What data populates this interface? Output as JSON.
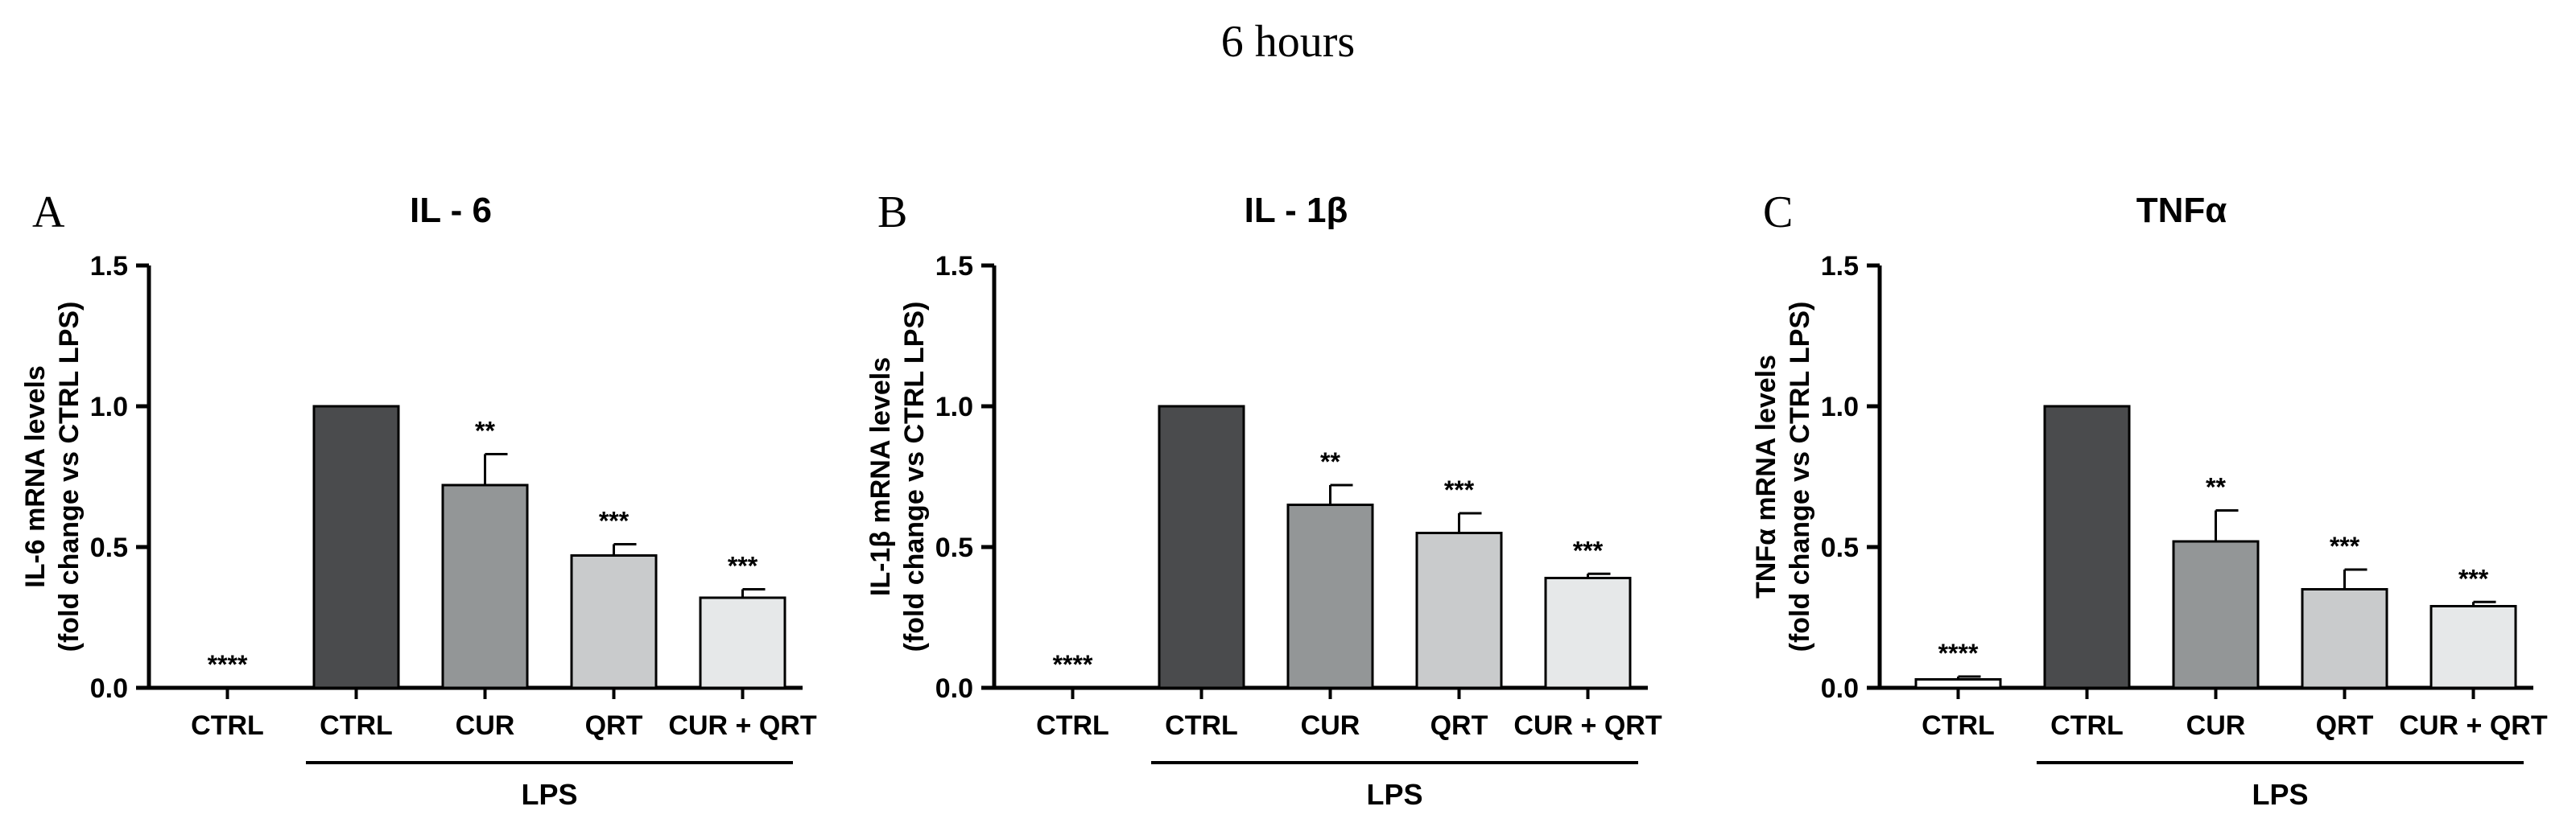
{
  "figure_title": "6 hours",
  "colors": {
    "axis": "#000000",
    "bar_fills": [
      "#ffffff",
      "#4a4b4d",
      "#939697",
      "#c9cbcc",
      "#e6e8e9"
    ],
    "bar_stroke": "#000000"
  },
  "chart_data": [
    {
      "panel": "A",
      "type": "bar",
      "title": "IL - 6",
      "ylabel": [
        "IL-6 mRNA levels",
        "(fold change vs CTRL LPS)"
      ],
      "ylim": [
        0,
        1.5
      ],
      "yticks": [
        "0.0",
        "0.5",
        "1.0",
        "1.5"
      ],
      "categories": [
        "CTRL",
        "CTRL",
        "CUR",
        "QRT",
        "CUR + QRT"
      ],
      "values": [
        0.0,
        1.0,
        0.72,
        0.47,
        0.32
      ],
      "errors": [
        0.0,
        0.0,
        0.11,
        0.04,
        0.03
      ],
      "significance": [
        "****",
        "",
        "**",
        "***",
        "***"
      ],
      "group_label": "LPS",
      "group_range": [
        1,
        4
      ]
    },
    {
      "panel": "B",
      "type": "bar",
      "title": "IL - 1β",
      "ylabel": [
        "IL-1β mRNA levels",
        "(fold change vs CTRL LPS)"
      ],
      "ylim": [
        0,
        1.5
      ],
      "yticks": [
        "0.0",
        "0.5",
        "1.0",
        "1.5"
      ],
      "categories": [
        "CTRL",
        "CTRL",
        "CUR",
        "QRT",
        "CUR + QRT"
      ],
      "values": [
        0.0,
        1.0,
        0.65,
        0.55,
        0.39
      ],
      "errors": [
        0.0,
        0.0,
        0.07,
        0.07,
        0.015
      ],
      "significance": [
        "****",
        "",
        "**",
        "***",
        "***"
      ],
      "group_label": "LPS",
      "group_range": [
        1,
        4
      ]
    },
    {
      "panel": "C",
      "type": "bar",
      "title": "TNFα",
      "ylabel": [
        "TNFα mRNA levels",
        "(fold change vs CTRL LPS)"
      ],
      "ylim": [
        0,
        1.5
      ],
      "yticks": [
        "0.0",
        "0.5",
        "1.0",
        "1.5"
      ],
      "categories": [
        "CTRL",
        "CTRL",
        "CUR",
        "QRT",
        "CUR + QRT"
      ],
      "values": [
        0.03,
        1.0,
        0.52,
        0.35,
        0.29
      ],
      "errors": [
        0.01,
        0.0,
        0.11,
        0.07,
        0.015
      ],
      "significance": [
        "****",
        "",
        "**",
        "***",
        "***"
      ],
      "group_label": "LPS",
      "group_range": [
        1,
        4
      ]
    }
  ]
}
